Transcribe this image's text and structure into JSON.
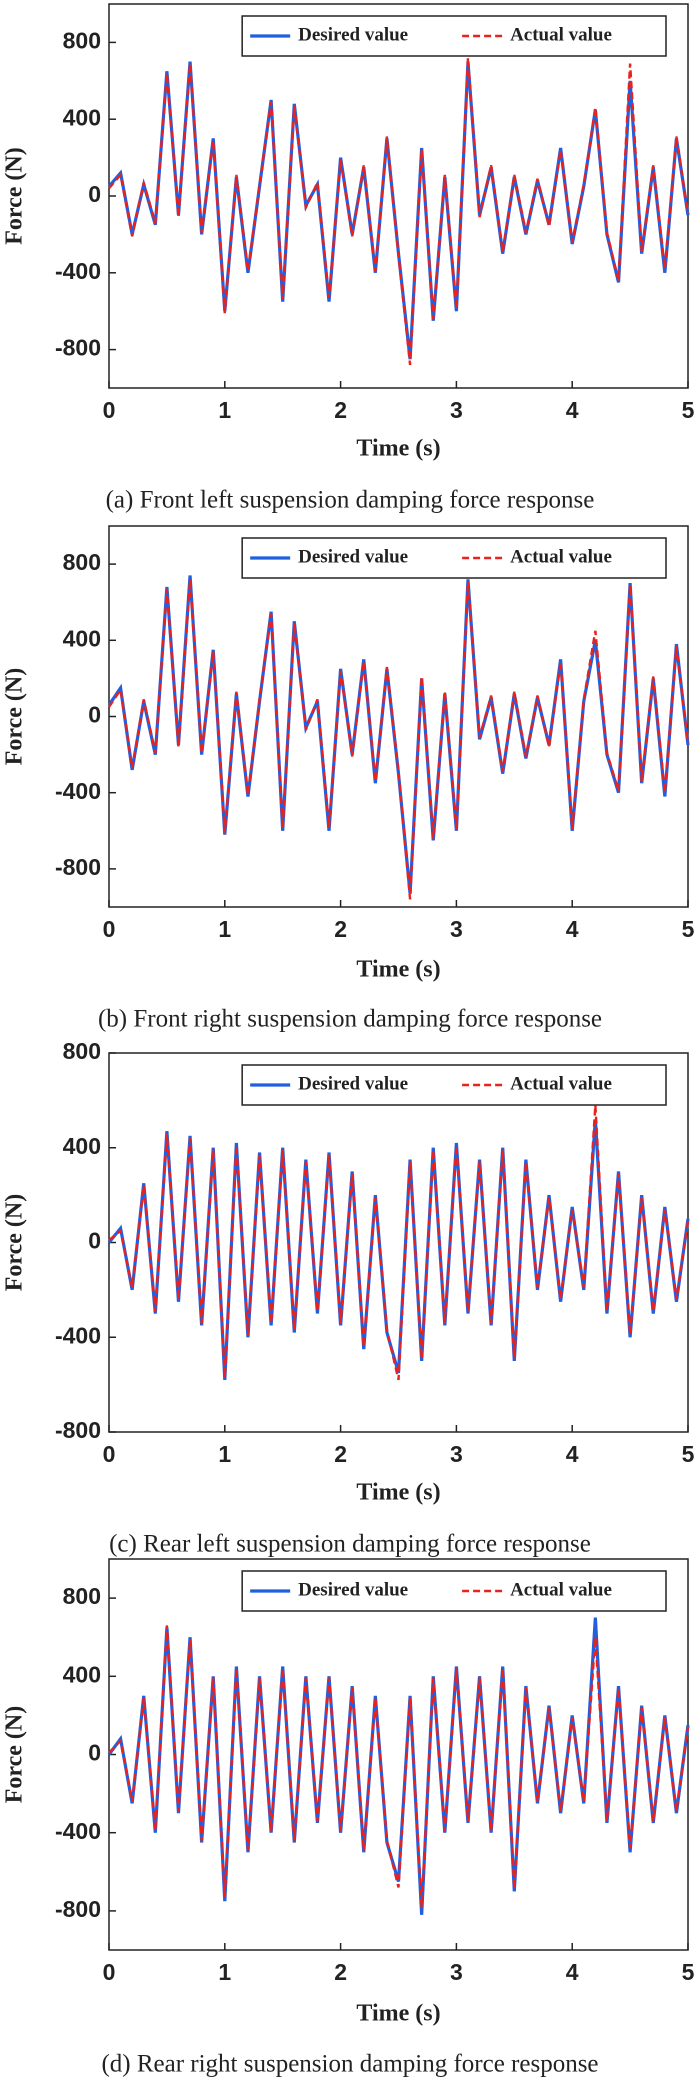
{
  "chart_data": [
    {
      "type": "line",
      "caption": "(a) Front left suspension damping force response",
      "x_label": "Time (s)",
      "y_label": "Force (N)",
      "x": [
        0,
        0.1,
        0.2,
        0.3,
        0.4,
        0.5,
        0.6,
        0.7,
        0.8,
        0.9,
        1,
        1.1,
        1.2,
        1.3,
        1.4,
        1.5,
        1.6,
        1.7,
        1.8,
        1.9,
        2,
        2.1,
        2.2,
        2.3,
        2.4,
        2.5,
        2.6,
        2.7,
        2.8,
        2.9,
        3,
        3.1,
        3.2,
        3.3,
        3.4,
        3.5,
        3.6,
        3.7,
        3.8,
        3.9,
        4,
        4.1,
        4.2,
        4.3,
        4.4,
        4.5,
        4.6,
        4.7,
        4.8,
        4.9,
        5
      ],
      "xlim": [
        0,
        5
      ],
      "xticks": [
        0,
        1,
        2,
        3,
        4,
        5
      ],
      "ylim": [
        -1000,
        1000
      ],
      "yticks": [
        -800,
        -400,
        0,
        400,
        800
      ],
      "legend": "top-right",
      "series": [
        {
          "name": "Desired value",
          "color": "#1f5fe0",
          "style": "solid",
          "values": [
            50,
            120,
            -200,
            60,
            -150,
            650,
            -100,
            700,
            -200,
            300,
            -600,
            100,
            -400,
            50,
            500,
            -550,
            480,
            -50,
            60,
            -550,
            200,
            -200,
            150,
            -400,
            300,
            -300,
            -850,
            250,
            -650,
            100,
            -600,
            700,
            -100,
            150,
            -300,
            100,
            -200,
            80,
            -150,
            250,
            -250,
            50,
            450,
            -200,
            -450,
            600,
            -300,
            150,
            -400,
            300,
            -100
          ]
        },
        {
          "name": "Actual value",
          "color": "#e8231f",
          "style": "dashed",
          "values": [
            40,
            110,
            -210,
            70,
            -140,
            640,
            -110,
            690,
            -190,
            290,
            -610,
            110,
            -390,
            60,
            490,
            -540,
            470,
            -60,
            70,
            -530,
            190,
            -210,
            160,
            -390,
            310,
            -310,
            -880,
            240,
            -640,
            110,
            -590,
            720,
            -110,
            160,
            -290,
            110,
            -190,
            90,
            -160,
            240,
            -240,
            60,
            460,
            -190,
            -440,
            690,
            -290,
            160,
            -380,
            310,
            -90
          ]
        }
      ]
    },
    {
      "type": "line",
      "caption": "(b) Front right suspension damping force response",
      "x_label": "Time (s)",
      "y_label": "Force (N)",
      "x": [
        0,
        0.1,
        0.2,
        0.3,
        0.4,
        0.5,
        0.6,
        0.7,
        0.8,
        0.9,
        1,
        1.1,
        1.2,
        1.3,
        1.4,
        1.5,
        1.6,
        1.7,
        1.8,
        1.9,
        2,
        2.1,
        2.2,
        2.3,
        2.4,
        2.5,
        2.6,
        2.7,
        2.8,
        2.9,
        3,
        3.1,
        3.2,
        3.3,
        3.4,
        3.5,
        3.6,
        3.7,
        3.8,
        3.9,
        4,
        4.1,
        4.2,
        4.3,
        4.4,
        4.5,
        4.6,
        4.7,
        4.8,
        4.9,
        5
      ],
      "xlim": [
        0,
        5
      ],
      "xticks": [
        0,
        1,
        2,
        3,
        4,
        5
      ],
      "ylim": [
        -1000,
        1000
      ],
      "yticks": [
        -800,
        -400,
        0,
        400,
        800
      ],
      "legend": "top-right",
      "series": [
        {
          "name": "Desired value",
          "color": "#1f5fe0",
          "style": "solid",
          "values": [
            60,
            150,
            -280,
            80,
            -200,
            680,
            -150,
            740,
            -200,
            350,
            -620,
            120,
            -420,
            80,
            550,
            -600,
            500,
            -60,
            80,
            -600,
            250,
            -200,
            300,
            -350,
            250,
            -300,
            -930,
            200,
            -650,
            120,
            -600,
            720,
            -120,
            100,
            -300,
            120,
            -220,
            100,
            -150,
            300,
            -600,
            80,
            400,
            -200,
            -400,
            700,
            -350,
            200,
            -420,
            380,
            -150
          ]
        },
        {
          "name": "Actual value",
          "color": "#e8231f",
          "style": "dashed",
          "values": [
            50,
            140,
            -270,
            90,
            -190,
            670,
            -160,
            720,
            -190,
            340,
            -610,
            130,
            -410,
            90,
            540,
            -590,
            490,
            -70,
            90,
            -580,
            240,
            -210,
            290,
            -340,
            260,
            -290,
            -960,
            210,
            -640,
            130,
            -590,
            710,
            -110,
            110,
            -290,
            130,
            -210,
            110,
            -160,
            290,
            -590,
            90,
            450,
            -190,
            -390,
            690,
            -340,
            210,
            -400,
            370,
            -140
          ]
        }
      ]
    },
    {
      "type": "line",
      "caption": "(c) Rear left suspension damping force response",
      "x_label": "Time (s)",
      "y_label": "Force (N)",
      "x": [
        0,
        0.1,
        0.2,
        0.3,
        0.4,
        0.5,
        0.6,
        0.7,
        0.8,
        0.9,
        1,
        1.1,
        1.2,
        1.3,
        1.4,
        1.5,
        1.6,
        1.7,
        1.8,
        1.9,
        2,
        2.1,
        2.2,
        2.3,
        2.4,
        2.5,
        2.6,
        2.7,
        2.8,
        2.9,
        3,
        3.1,
        3.2,
        3.3,
        3.4,
        3.5,
        3.6,
        3.7,
        3.8,
        3.9,
        4,
        4.1,
        4.2,
        4.3,
        4.4,
        4.5,
        4.6,
        4.7,
        4.8,
        4.9,
        5
      ],
      "xlim": [
        0,
        5
      ],
      "xticks": [
        0,
        1,
        2,
        3,
        4,
        5
      ],
      "ylim": [
        -800,
        800
      ],
      "yticks": [
        -800,
        -400,
        0,
        400,
        800
      ],
      "legend": "top-right",
      "series": [
        {
          "name": "Desired value",
          "color": "#1f5fe0",
          "style": "solid",
          "values": [
            0,
            60,
            -200,
            250,
            -300,
            470,
            -250,
            450,
            -350,
            400,
            -580,
            420,
            -400,
            380,
            -350,
            400,
            -380,
            350,
            -300,
            380,
            -350,
            300,
            -450,
            200,
            -380,
            -550,
            350,
            -500,
            400,
            -350,
            420,
            -300,
            350,
            -350,
            400,
            -500,
            350,
            -200,
            200,
            -250,
            150,
            -200,
            520,
            -300,
            300,
            -400,
            200,
            -300,
            150,
            -250,
            100
          ]
        },
        {
          "name": "Actual value",
          "color": "#e8231f",
          "style": "dashed",
          "values": [
            10,
            50,
            -190,
            240,
            -290,
            460,
            -240,
            440,
            -340,
            390,
            -570,
            410,
            -390,
            370,
            -340,
            390,
            -370,
            340,
            -290,
            370,
            -340,
            290,
            -440,
            190,
            -370,
            -580,
            340,
            -490,
            390,
            -340,
            410,
            -290,
            340,
            -340,
            390,
            -490,
            340,
            -190,
            190,
            -240,
            140,
            -190,
            580,
            -290,
            290,
            -390,
            190,
            -290,
            140,
            -240,
            90
          ]
        }
      ]
    },
    {
      "type": "line",
      "caption": "(d) Rear right suspension damping force response",
      "x_label": "Time (s)",
      "y_label": "Force (N)",
      "x": [
        0,
        0.1,
        0.2,
        0.3,
        0.4,
        0.5,
        0.6,
        0.7,
        0.8,
        0.9,
        1,
        1.1,
        1.2,
        1.3,
        1.4,
        1.5,
        1.6,
        1.7,
        1.8,
        1.9,
        2,
        2.1,
        2.2,
        2.3,
        2.4,
        2.5,
        2.6,
        2.7,
        2.8,
        2.9,
        3,
        3.1,
        3.2,
        3.3,
        3.4,
        3.5,
        3.6,
        3.7,
        3.8,
        3.9,
        4,
        4.1,
        4.2,
        4.3,
        4.4,
        4.5,
        4.6,
        4.7,
        4.8,
        4.9,
        5
      ],
      "xlim": [
        0,
        5
      ],
      "xticks": [
        0,
        1,
        2,
        3,
        4,
        5
      ],
      "ylim": [
        -1000,
        1000
      ],
      "yticks": [
        -800,
        -400,
        0,
        400,
        800
      ],
      "legend": "top-right",
      "series": [
        {
          "name": "Desired value",
          "color": "#1f5fe0",
          "style": "solid",
          "values": [
            0,
            80,
            -250,
            300,
            -400,
            650,
            -300,
            600,
            -450,
            400,
            -750,
            450,
            -500,
            400,
            -400,
            450,
            -450,
            400,
            -350,
            400,
            -400,
            350,
            -500,
            300,
            -450,
            -650,
            300,
            -820,
            400,
            -400,
            450,
            -350,
            400,
            -400,
            450,
            -700,
            350,
            -250,
            250,
            -300,
            200,
            -250,
            700,
            -350,
            350,
            -500,
            250,
            -350,
            200,
            -300,
            150
          ]
        },
        {
          "name": "Actual value",
          "color": "#e8231f",
          "style": "dashed",
          "values": [
            10,
            70,
            -240,
            290,
            -390,
            660,
            -290,
            590,
            -440,
            390,
            -730,
            440,
            -490,
            390,
            -390,
            440,
            -440,
            390,
            -340,
            390,
            -390,
            340,
            -490,
            290,
            -440,
            -680,
            290,
            -780,
            390,
            -390,
            440,
            -340,
            390,
            -390,
            440,
            -690,
            340,
            -240,
            240,
            -290,
            190,
            -240,
            600,
            -340,
            340,
            -480,
            240,
            -340,
            190,
            -290,
            140
          ]
        }
      ]
    }
  ]
}
